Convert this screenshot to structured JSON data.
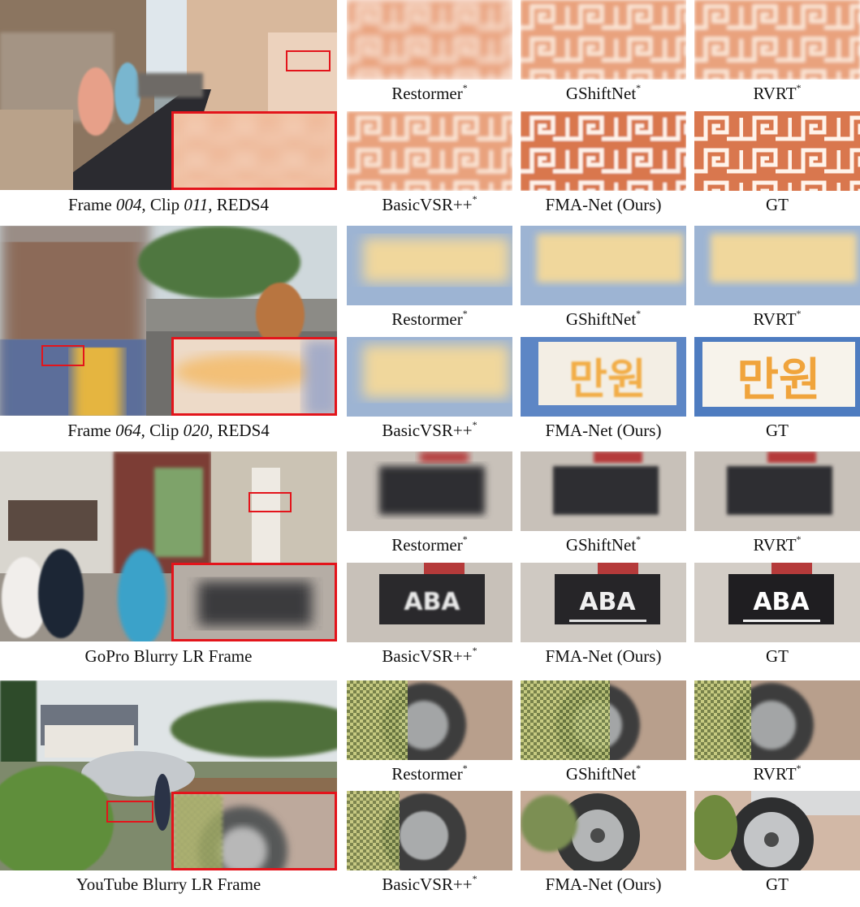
{
  "rows": [
    {
      "frame_caption": {
        "pre1": "Frame ",
        "frame": "004",
        "mid": ", Clip ",
        "clip": "011",
        "post": ", REDS4"
      },
      "tiles_top": [
        {
          "label": "Restormer",
          "sup": "*"
        },
        {
          "label": "GShiftNet",
          "sup": "*"
        },
        {
          "label": "RVRT",
          "sup": "*"
        }
      ],
      "tiles_bottom": [
        {
          "label": "BasicVSR++",
          "sup": "*"
        },
        {
          "label": "FMA-Net (Ours)",
          "sup": ""
        },
        {
          "label": "GT",
          "sup": ""
        }
      ]
    },
    {
      "frame_caption": {
        "pre1": "Frame ",
        "frame": "064",
        "mid": ", Clip ",
        "clip": "020",
        "post": ", REDS4"
      },
      "tiles_top": [
        {
          "label": "Restormer",
          "sup": "*"
        },
        {
          "label": "GShiftNet",
          "sup": "*"
        },
        {
          "label": "RVRT",
          "sup": "*"
        }
      ],
      "tiles_bottom": [
        {
          "label": "BasicVSR++",
          "sup": "*"
        },
        {
          "label": "FMA-Net (Ours)",
          "sup": ""
        },
        {
          "label": "GT",
          "sup": ""
        }
      ],
      "sign_text": "만원"
    },
    {
      "frame_caption": {
        "text": "GoPro Blurry LR Frame"
      },
      "tiles_top": [
        {
          "label": "Restormer",
          "sup": "*"
        },
        {
          "label": "GShiftNet",
          "sup": "*"
        },
        {
          "label": "RVRT",
          "sup": "*"
        }
      ],
      "tiles_bottom": [
        {
          "label": "BasicVSR++",
          "sup": "*"
        },
        {
          "label": "FMA-Net (Ours)",
          "sup": ""
        },
        {
          "label": "GT",
          "sup": ""
        }
      ],
      "sign_text": "ABA"
    },
    {
      "frame_caption": {
        "text": "YouTube Blurry LR Frame"
      },
      "tiles_top": [
        {
          "label": "Restormer",
          "sup": "*"
        },
        {
          "label": "GShiftNet",
          "sup": "*"
        },
        {
          "label": "RVRT",
          "sup": "*"
        }
      ],
      "tiles_bottom": [
        {
          "label": "BasicVSR++",
          "sup": "*"
        },
        {
          "label": "FMA-Net (Ours)",
          "sup": ""
        },
        {
          "label": "GT",
          "sup": ""
        }
      ]
    }
  ]
}
